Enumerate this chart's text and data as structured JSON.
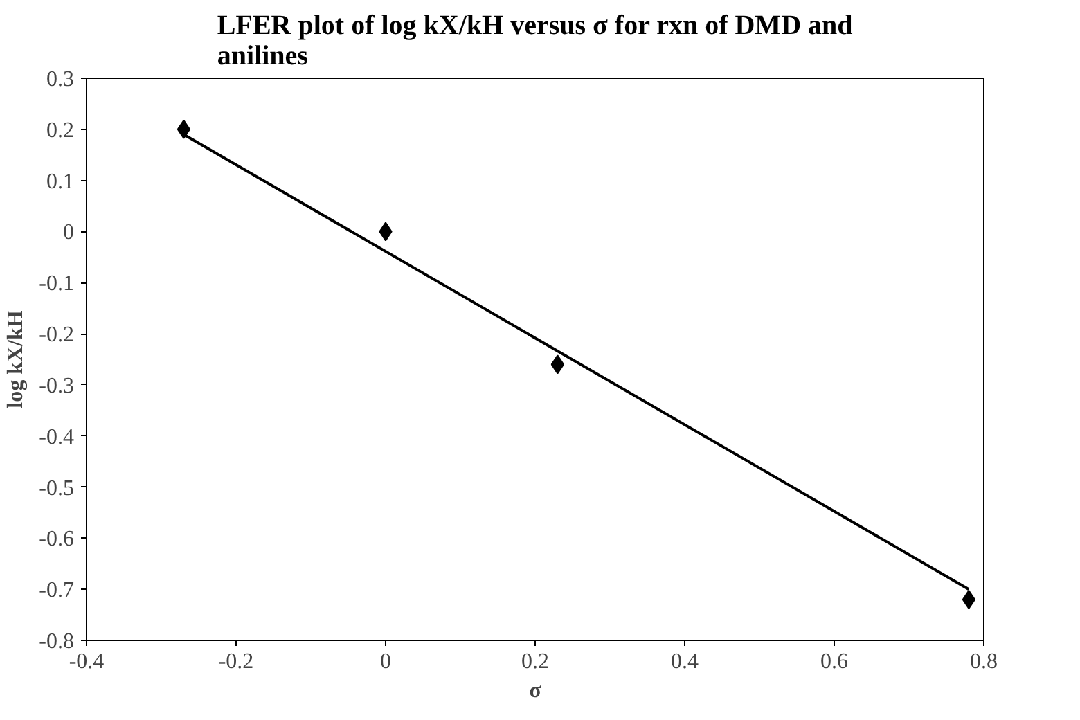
{
  "chart_data": {
    "type": "scatter",
    "title": "LFER plot of log kX/kH versus σ for rxn of DMD and anilines",
    "xlabel": "σ",
    "ylabel": "log kX/kH",
    "xlim": [
      -0.4,
      0.8
    ],
    "ylim": [
      -0.8,
      0.3
    ],
    "xticks": [
      -0.4,
      -0.2,
      0,
      0.2,
      0.4,
      0.6,
      0.8
    ],
    "yticks": [
      0.3,
      0.2,
      0.1,
      0,
      -0.1,
      -0.2,
      -0.3,
      -0.4,
      -0.5,
      -0.6,
      -0.7,
      -0.8
    ],
    "grid": false,
    "series": [
      {
        "type": "scatter",
        "marker": "diamond",
        "color": "#000000",
        "x": [
          -0.27,
          0.0,
          0.23,
          0.78
        ],
        "values": [
          0.2,
          0.0,
          -0.26,
          -0.72
        ]
      },
      {
        "type": "line",
        "marker": "none",
        "color": "#000000",
        "line_style": "solid",
        "x": [
          -0.27,
          0.78
        ],
        "values": [
          0.19,
          -0.7
        ]
      }
    ]
  }
}
